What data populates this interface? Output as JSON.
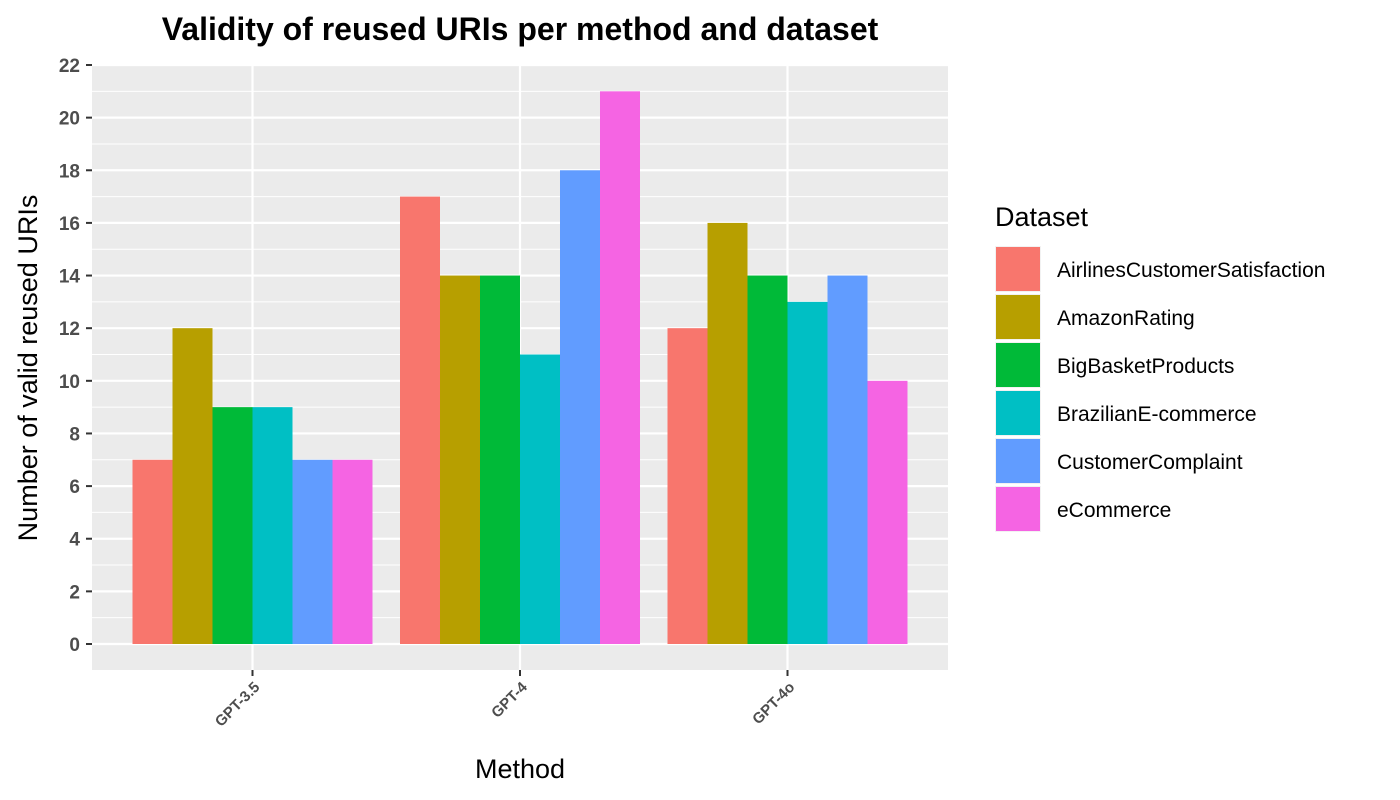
{
  "chart_data": {
    "type": "bar",
    "title": "Validity of reused URIs per method and dataset",
    "xlabel": "Method",
    "ylabel": "Number of valid reused URIs",
    "categories": [
      "GPT-3.5",
      "GPT-4",
      "GPT-4o"
    ],
    "ylim": [
      -1,
      22
    ],
    "yticks": [
      0,
      2,
      4,
      6,
      8,
      10,
      12,
      14,
      16,
      18,
      20,
      22
    ],
    "grid": true,
    "legend": {
      "title": "Dataset",
      "position": "right"
    },
    "series": [
      {
        "name": "AirlinesCustomerSatisfaction",
        "color": "#F8766D",
        "values": [
          7,
          17,
          12
        ]
      },
      {
        "name": "AmazonRating",
        "color": "#B79F00",
        "values": [
          12,
          14,
          16
        ]
      },
      {
        "name": "BigBasketProducts",
        "color": "#00BA38",
        "values": [
          9,
          14,
          14
        ]
      },
      {
        "name": "BrazilianE-commerce",
        "color": "#00BFC4",
        "values": [
          9,
          11,
          13
        ]
      },
      {
        "name": "CustomerComplaint",
        "color": "#619CFF",
        "values": [
          7,
          18,
          14
        ]
      },
      {
        "name": "eCommerce",
        "color": "#F564E3",
        "values": [
          7,
          21,
          10
        ]
      }
    ]
  }
}
